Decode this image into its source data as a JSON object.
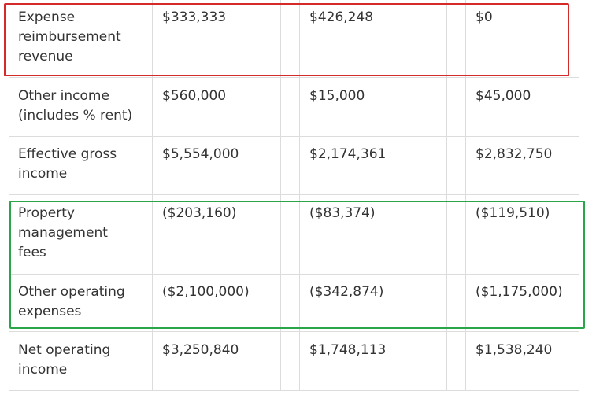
{
  "table": {
    "rows": [
      {
        "label": "Expense\nreimbursement\nrevenue",
        "values": [
          "$333,333",
          "$426,248",
          "$0"
        ]
      },
      {
        "label": "Other income\n(includes % rent)",
        "values": [
          "$560,000",
          "$15,000",
          "$45,000"
        ]
      },
      {
        "label": "Effective gross\nincome",
        "values": [
          "$5,554,000",
          "$2,174,361",
          "$2,832,750"
        ]
      },
      {
        "label": "Property\nmanagement\nfees",
        "values": [
          "($203,160)",
          "($83,374)",
          "($119,510)"
        ]
      },
      {
        "label": "Other operating\nexpenses",
        "values": [
          "($2,100,000)",
          "($342,874)",
          "($1,175,000)"
        ]
      },
      {
        "label": "Net operating\nincome",
        "values": [
          "$3,250,840",
          "$1,748,113",
          "$1,538,240"
        ]
      }
    ]
  },
  "highlights": {
    "red_color": "#d42a2a",
    "green_color": "#2aa54a"
  }
}
